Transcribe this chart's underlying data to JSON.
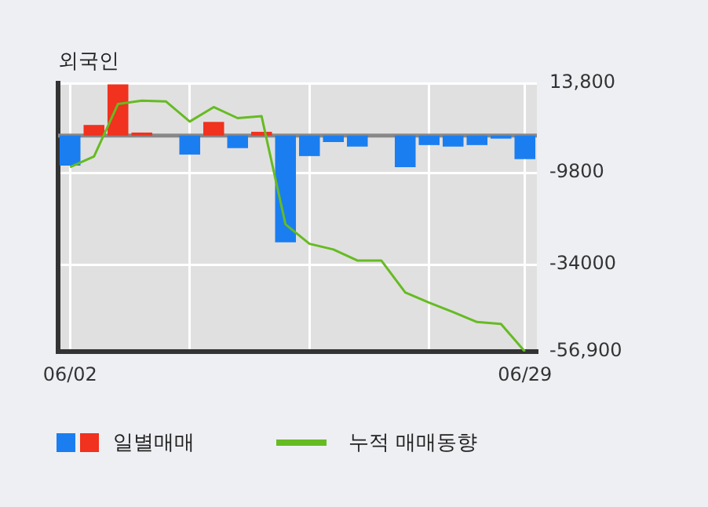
{
  "chart_data": {
    "type": "bar",
    "title": "외국인",
    "categories": [
      "06/02",
      null,
      null,
      null,
      null,
      null,
      null,
      null,
      null,
      null,
      null,
      null,
      null,
      null,
      null,
      null,
      null,
      null,
      null,
      "06/29"
    ],
    "series": [
      {
        "name": "일별매매",
        "values": [
          -7900,
          2800,
          13500,
          800,
          0,
          -5000,
          3600,
          -3300,
          1000,
          -28100,
          -5400,
          -1700,
          -2900,
          0,
          -8300,
          -2500,
          -2900,
          -2500,
          -800,
          -6200
        ],
        "colors": [
          "#1a7ef0",
          "#f0321e",
          "#f0321e",
          "#f0321e",
          "#1a7ef0",
          "#1a7ef0",
          "#f0321e",
          "#1a7ef0",
          "#f0321e",
          "#1a7ef0",
          "#1a7ef0",
          "#1a7ef0",
          "#1a7ef0",
          "#1a7ef0",
          "#1a7ef0",
          "#1a7ef0",
          "#1a7ef0",
          "#1a7ef0",
          "#1a7ef0",
          "#1a7ef0"
        ]
      },
      {
        "name": "누적 매매동향",
        "type": "line",
        "color": "#66bb22",
        "values": [
          -8300,
          -5500,
          8300,
          9200,
          9000,
          3700,
          7500,
          4600,
          5100,
          -23400,
          -28500,
          -30000,
          -32900,
          -32900,
          -41300,
          -44000,
          -46500,
          -49100,
          -49600,
          -56900
        ]
      }
    ],
    "ylim": [
      -56900,
      13800
    ],
    "yticks": [
      {
        "value": 13800,
        "label": "13,800"
      },
      -9800,
      -34000,
      {
        "value": -56900,
        "label": "-56,900"
      }
    ],
    "ref_lines": [
      {
        "axis": "y",
        "value": 0,
        "color": "#888888"
      }
    ],
    "grid": true,
    "legend": "bottom",
    "marker": "none",
    "line_style": "solid"
  }
}
